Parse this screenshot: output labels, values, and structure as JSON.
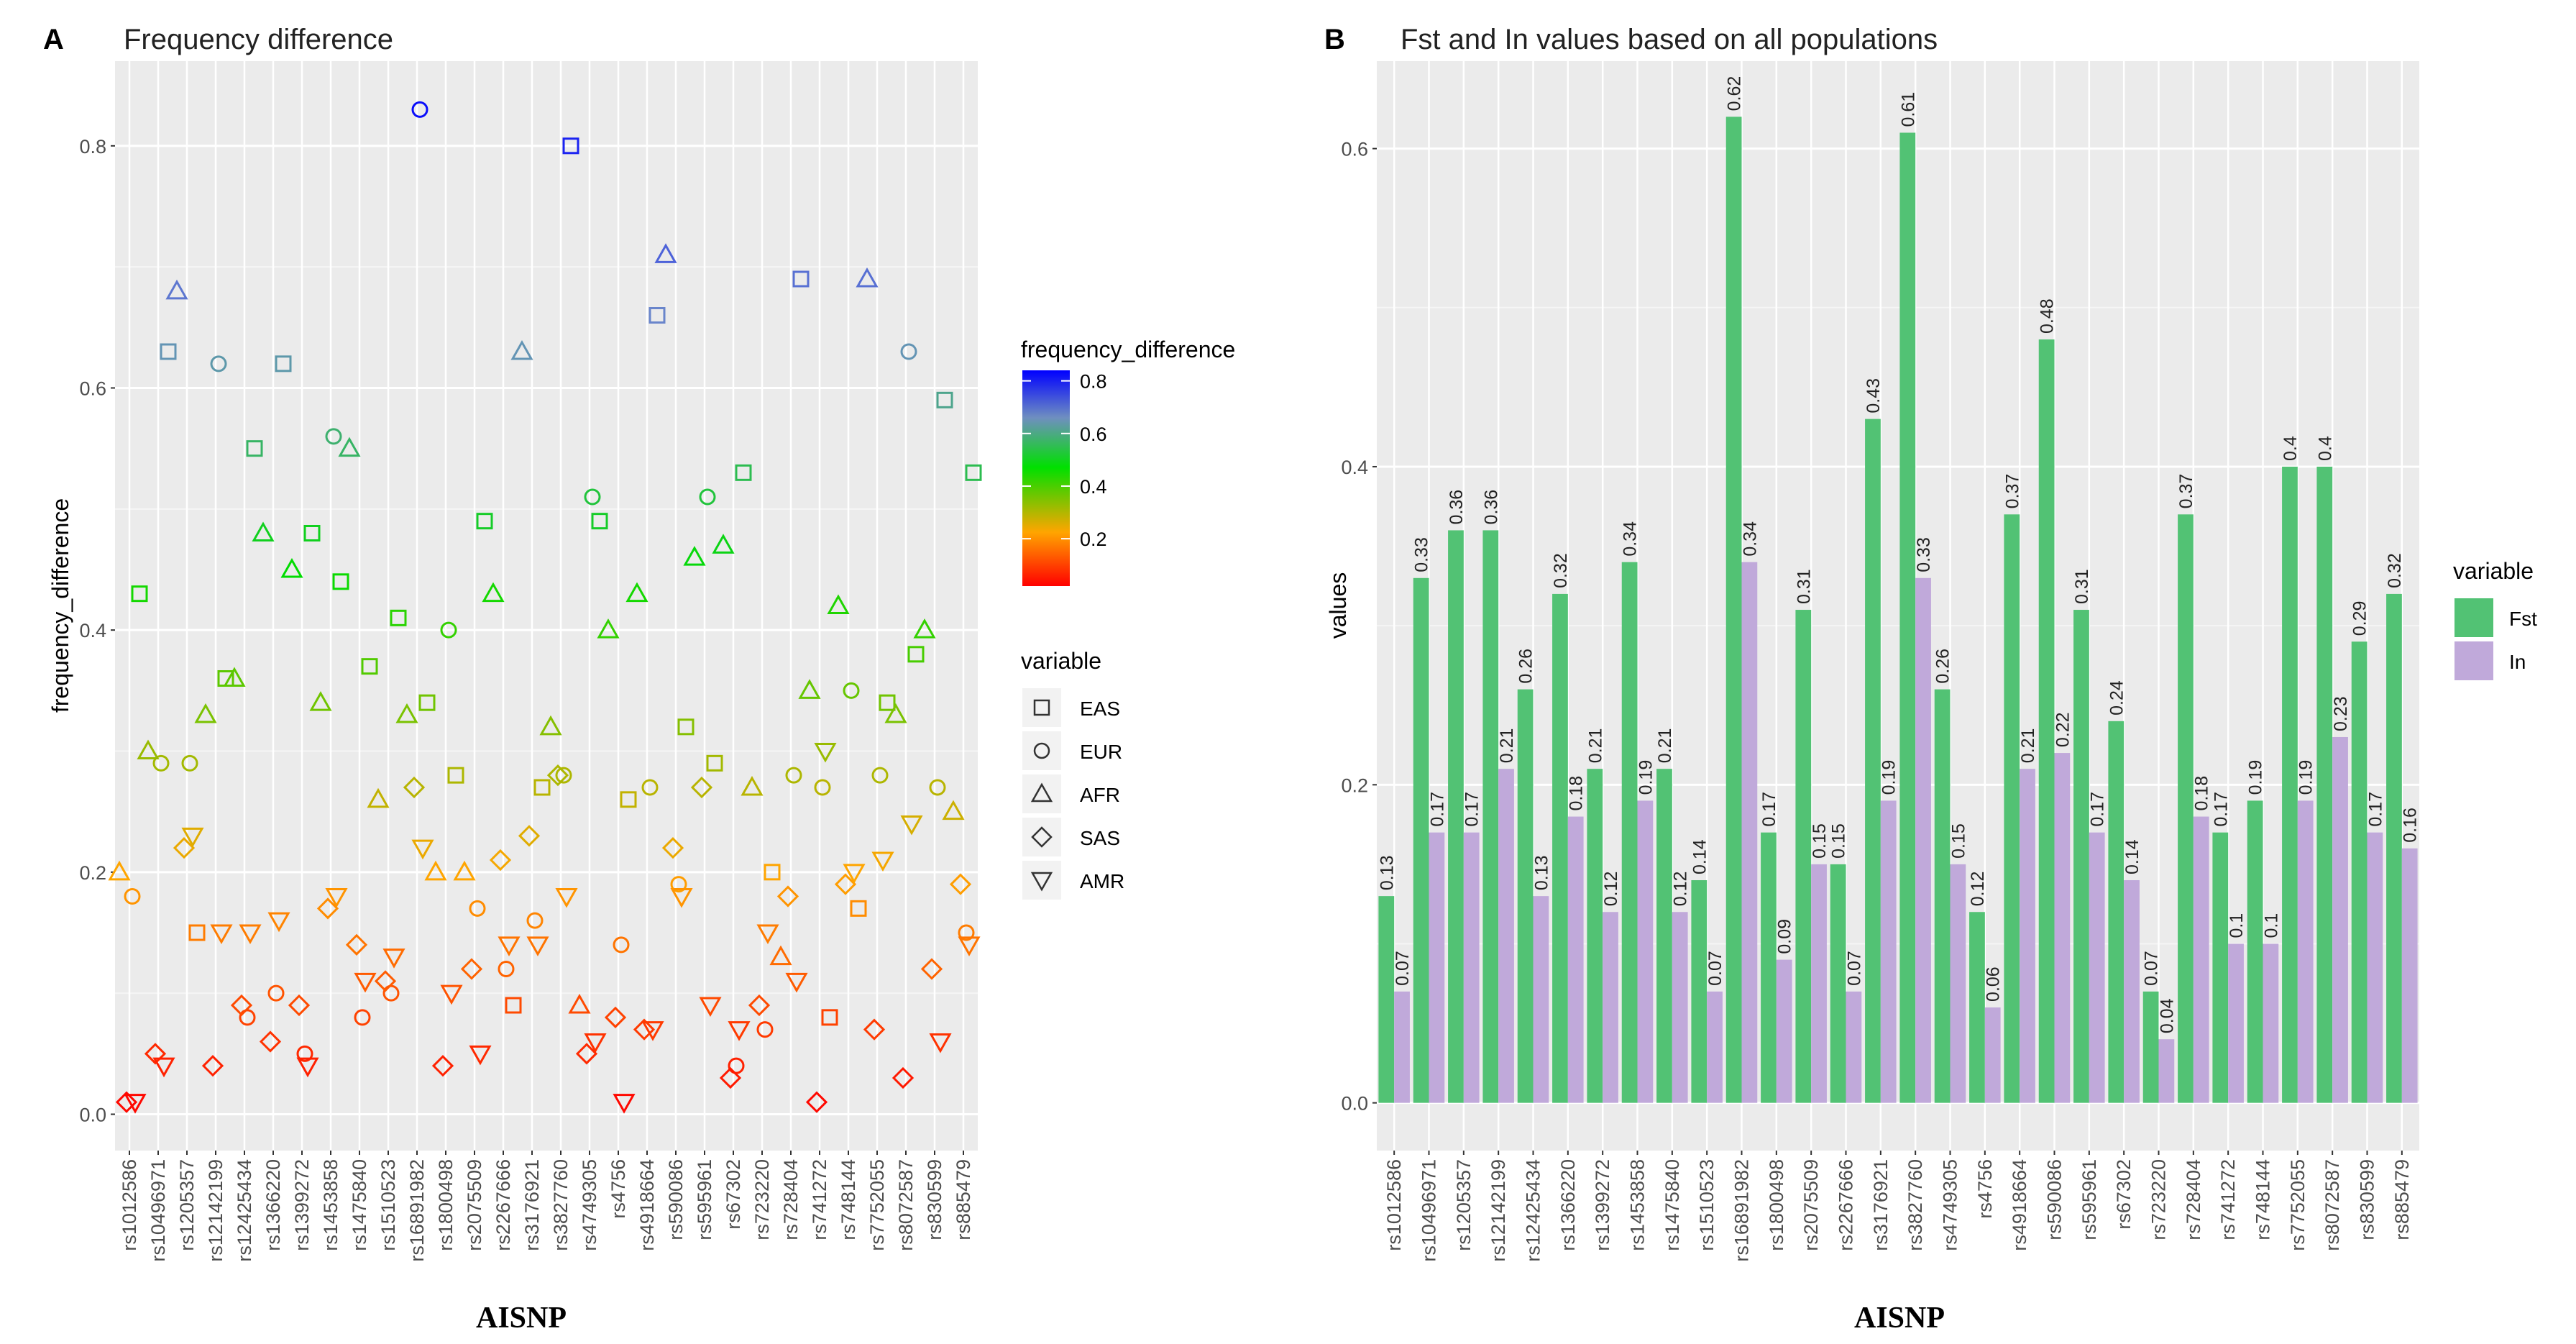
{
  "chart_data": [
    {
      "panel": "A",
      "type": "scatter",
      "title": "Frequency difference",
      "xlabel": "AISNP",
      "ylabel": "frequency_difference",
      "ylim": [
        -0.03,
        0.87
      ],
      "yticks": [
        0.0,
        0.2,
        0.4,
        0.6,
        0.8
      ],
      "ytick_labels": [
        "0.0",
        "0.2",
        "0.4",
        "0.6",
        "0.8"
      ],
      "grid": true,
      "categories": [
        "rs1012586",
        "rs10496971",
        "rs1205357",
        "rs12142199",
        "rs12425434",
        "rs1366220",
        "rs1399272",
        "rs1453858",
        "rs1475840",
        "rs1510523",
        "rs16891982",
        "rs1800498",
        "rs2075509",
        "rs2267666",
        "rs3176921",
        "rs3827760",
        "rs4749305",
        "rs4756",
        "rs4918664",
        "rs590086",
        "rs595961",
        "rs67302",
        "rs723220",
        "rs728404",
        "rs741272",
        "rs748144",
        "rs7752055",
        "rs8072587",
        "rs830599",
        "rs885479"
      ],
      "series": [
        {
          "name": "EAS",
          "shape": "square",
          "values": [
            0.43,
            0.63,
            0.15,
            0.36,
            0.55,
            0.62,
            0.48,
            0.44,
            0.37,
            0.41,
            0.34,
            0.28,
            0.49,
            0.09,
            0.27,
            0.8,
            0.49,
            0.26,
            0.66,
            0.32,
            0.29,
            0.53,
            0.2,
            0.69,
            0.08,
            0.17,
            0.34,
            0.38,
            0.59,
            0.53
          ]
        },
        {
          "name": "EUR",
          "shape": "circle",
          "values": [
            0.18,
            0.29,
            0.29,
            0.62,
            0.08,
            0.1,
            0.05,
            0.56,
            0.08,
            0.1,
            0.83,
            0.4,
            0.17,
            0.12,
            0.16,
            0.28,
            0.51,
            0.14,
            0.27,
            0.19,
            0.51,
            0.04,
            0.07,
            0.28,
            0.27,
            0.35,
            0.28,
            0.63,
            0.27,
            0.15
          ]
        },
        {
          "name": "AFR",
          "shape": "triangle-up",
          "values": [
            0.2,
            0.3,
            0.68,
            0.33,
            0.36,
            0.48,
            0.45,
            0.34,
            0.55,
            0.26,
            0.33,
            0.2,
            0.2,
            0.43,
            0.63,
            0.32,
            0.09,
            0.4,
            0.43,
            0.71,
            0.46,
            0.47,
            0.27,
            0.13,
            0.35,
            0.42,
            0.69,
            0.33,
            0.4,
            0.25
          ]
        },
        {
          "name": "SAS",
          "shape": "diamond",
          "values": [
            0.01,
            0.05,
            0.22,
            0.04,
            0.09,
            0.06,
            0.09,
            0.17,
            0.14,
            0.11,
            0.27,
            0.04,
            0.12,
            0.21,
            0.23,
            0.28,
            0.05,
            0.08,
            0.07,
            0.22,
            0.27,
            0.03,
            0.09,
            0.18,
            0.01,
            0.19,
            0.07,
            0.03,
            0.12,
            0.19
          ]
        },
        {
          "name": "AMR",
          "shape": "triangle-down",
          "values": [
            0.01,
            0.04,
            0.23,
            0.15,
            0.15,
            0.16,
            0.04,
            0.18,
            0.11,
            0.13,
            0.22,
            0.1,
            0.05,
            0.14,
            0.14,
            0.18,
            0.06,
            0.01,
            0.07,
            0.18,
            0.09,
            0.07,
            0.15,
            0.11,
            0.3,
            0.2,
            0.21,
            0.24,
            0.06,
            0.14
          ]
        }
      ],
      "color_legend": {
        "title": "frequency_difference",
        "ticks": [
          "0.2",
          "0.4",
          "0.6",
          "0.8"
        ],
        "colors": [
          "#ff0000",
          "#ffa500",
          "#00ff00",
          "#0000ff"
        ]
      },
      "shape_legend": {
        "title": "variable",
        "items": [
          "EAS",
          "EUR",
          "AFR",
          "SAS",
          "AMR"
        ]
      },
      "legend_position": "right"
    },
    {
      "panel": "B",
      "type": "bar",
      "title": "Fst and In values based on all populations",
      "xlabel": "AISNP",
      "ylabel": "values",
      "ylim": [
        -0.03,
        0.655
      ],
      "yticks": [
        0.0,
        0.2,
        0.4,
        0.6
      ],
      "ytick_labels": [
        "0.0",
        "0.2",
        "0.4",
        "0.6"
      ],
      "grid": true,
      "categories": [
        "rs1012586",
        "rs10496971",
        "rs1205357",
        "rs12142199",
        "rs12425434",
        "rs1366220",
        "rs1399272",
        "rs1453858",
        "rs1475840",
        "rs1510523",
        "rs16891982",
        "rs1800498",
        "rs2075509",
        "rs2267666",
        "rs3176921",
        "rs3827760",
        "rs4749305",
        "rs4756",
        "rs4918664",
        "rs590086",
        "rs595961",
        "rs67302",
        "rs723220",
        "rs728404",
        "rs741272",
        "rs748144",
        "rs7752055",
        "rs8072587",
        "rs830599",
        "rs885479"
      ],
      "series": [
        {
          "name": "Fst",
          "color": "#52c274",
          "values": [
            0.13,
            0.33,
            0.36,
            0.36,
            0.26,
            0.32,
            0.21,
            0.34,
            0.21,
            0.14,
            0.62,
            0.17,
            0.31,
            0.15,
            0.43,
            0.61,
            0.26,
            0.12,
            0.37,
            0.48,
            0.31,
            0.24,
            0.07,
            0.37,
            0.17,
            0.19,
            0.4,
            0.4,
            0.29,
            0.32
          ],
          "labels": [
            "0.13",
            "0.33",
            "0.36",
            "0.36",
            "0.26",
            "0.32",
            "0.21",
            "0.34",
            "0.21",
            "0.14",
            "0.62",
            "0.17",
            "0.31",
            "0.15",
            "0.43",
            "0.61",
            "0.26",
            "0.12",
            "0.37",
            "0.48",
            "0.31",
            "0.24",
            "0.07",
            "0.37",
            "0.17",
            "0.19",
            "0.4",
            "0.4",
            "0.29",
            "0.32"
          ]
        },
        {
          "name": "In",
          "color": "#c0a9da",
          "values": [
            0.07,
            0.17,
            0.17,
            0.21,
            0.13,
            0.18,
            0.12,
            0.19,
            0.12,
            0.07,
            0.34,
            0.09,
            0.15,
            0.07,
            0.19,
            0.33,
            0.15,
            0.06,
            0.21,
            0.22,
            0.17,
            0.14,
            0.04,
            0.18,
            0.1,
            0.1,
            0.19,
            0.23,
            0.17,
            0.16
          ],
          "labels": [
            "0.07",
            "0.17",
            "0.17",
            "0.21",
            "0.13",
            "0.18",
            "0.12",
            "0.19",
            "0.12",
            "0.07",
            "0.34",
            "0.09",
            "0.15",
            "0.07",
            "0.19",
            "0.33",
            "0.15",
            "0.06",
            "0.21",
            "0.22",
            "0.17",
            "0.14",
            "0.04",
            "0.18",
            "0.1",
            "0.1",
            "0.19",
            "0.23",
            "0.17",
            "0.16"
          ]
        }
      ],
      "legend": {
        "title": "variable",
        "items": [
          "Fst",
          "In"
        ]
      },
      "legend_position": "right"
    }
  ],
  "panel_labels": [
    "A",
    "B"
  ]
}
